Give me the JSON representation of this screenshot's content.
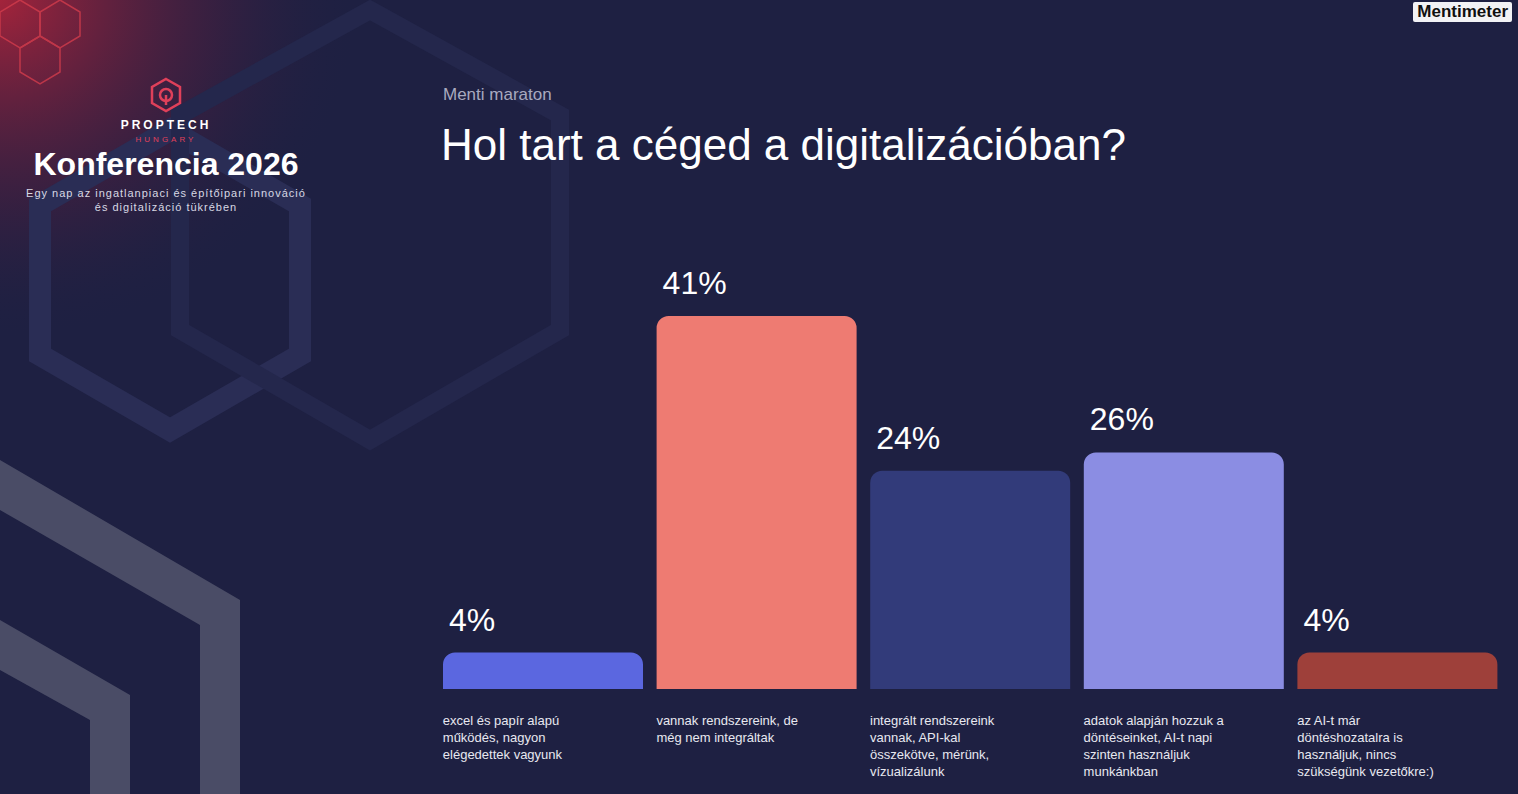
{
  "header": {
    "brand": "PROPTECH",
    "country": "HUNGARY",
    "event": "Konferencia 2026",
    "tagline": "Egy nap az ingatlanpiaci és építőipari innováció és digitalizáció tükrében",
    "platform": "Mentimeter",
    "section": "Menti maraton"
  },
  "chart_data": {
    "type": "bar",
    "title": "Hol tart a céged a digitalizációban?",
    "categories": [
      "excel és papír alapú működés, nagyon elégedettek vagyunk",
      "vannak rendszereink, de még nem integráltak",
      "integrált rendszereink vannak, API-kal összekötve, mérünk, vízualizálunk",
      "adatok alapján hozzuk a döntéseinket, AI-t napi szinten használjuk munkánkban",
      "az AI-t már döntéshozatalra is használjuk, nincs szükségünk vezetőkre:)"
    ],
    "values": [
      4,
      41,
      24,
      26,
      4
    ],
    "value_labels": [
      "4%",
      "41%",
      "24%",
      "26%",
      "4%"
    ],
    "colors": [
      "#5b67e0",
      "#ee7b72",
      "#323b7a",
      "#8b8de3",
      "#9e403a"
    ],
    "ylim": [
      0,
      41
    ],
    "data_labels": true,
    "tick_labels": "x",
    "grid": false
  }
}
